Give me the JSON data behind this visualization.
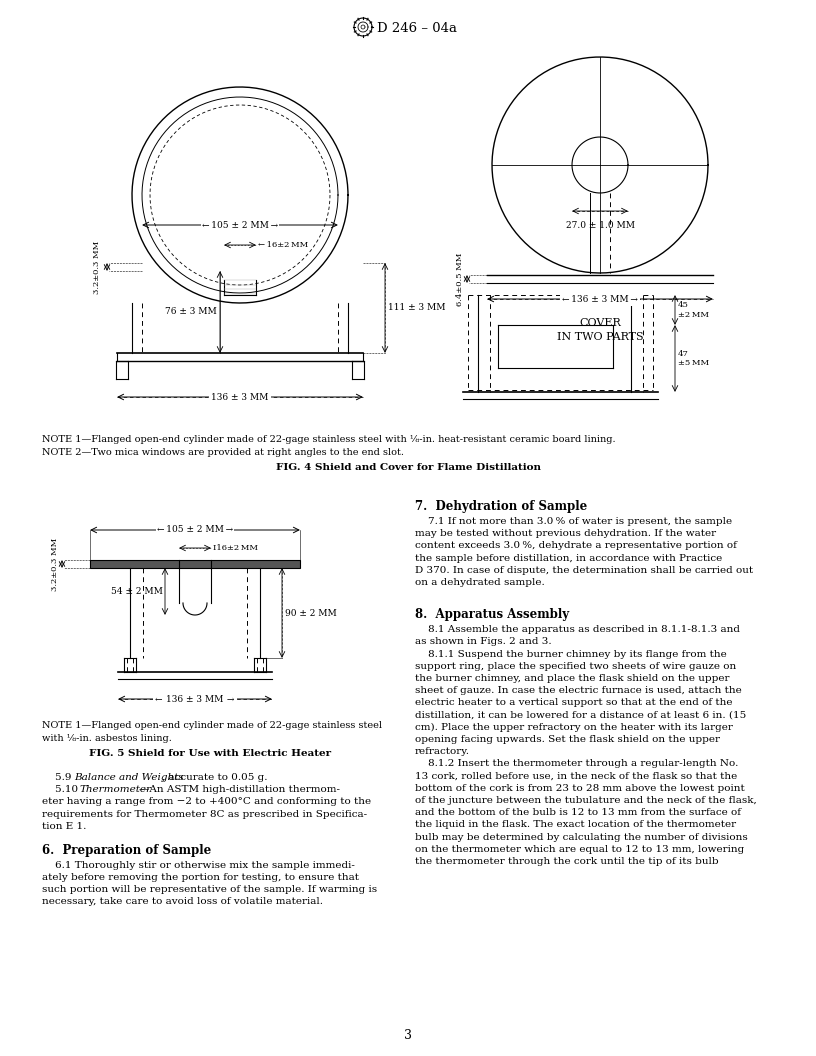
{
  "page_width": 8.16,
  "page_height": 10.56,
  "bg_color": "#ffffff",
  "header_text": "D 246 – 04a",
  "page_number": "3",
  "fig4_title": "FIG. 4 Shield and Cover for Flame Distillation",
  "fig4_note1": "NOTE 1—Flanged open-end cylinder made of 22-gage stainless steel with ⅛-in. heat-resistant ceramic board lining.",
  "fig4_note2": "NOTE 2—Two mica windows are provided at right angles to the end slot.",
  "fig5_title": "FIG. 5 Shield for Use with Electric Heater",
  "fig5_note1": "NOTE 1—Flanged open-end cylinder made of 22-gage stainless steel",
  "fig5_note2": "with ⅛-in. asbestos lining.",
  "section7_title": "7.  Dehydration of Sample",
  "section8_title": "8.  Apparatus Assembly",
  "section6_title": "6.  Preparation of Sample"
}
